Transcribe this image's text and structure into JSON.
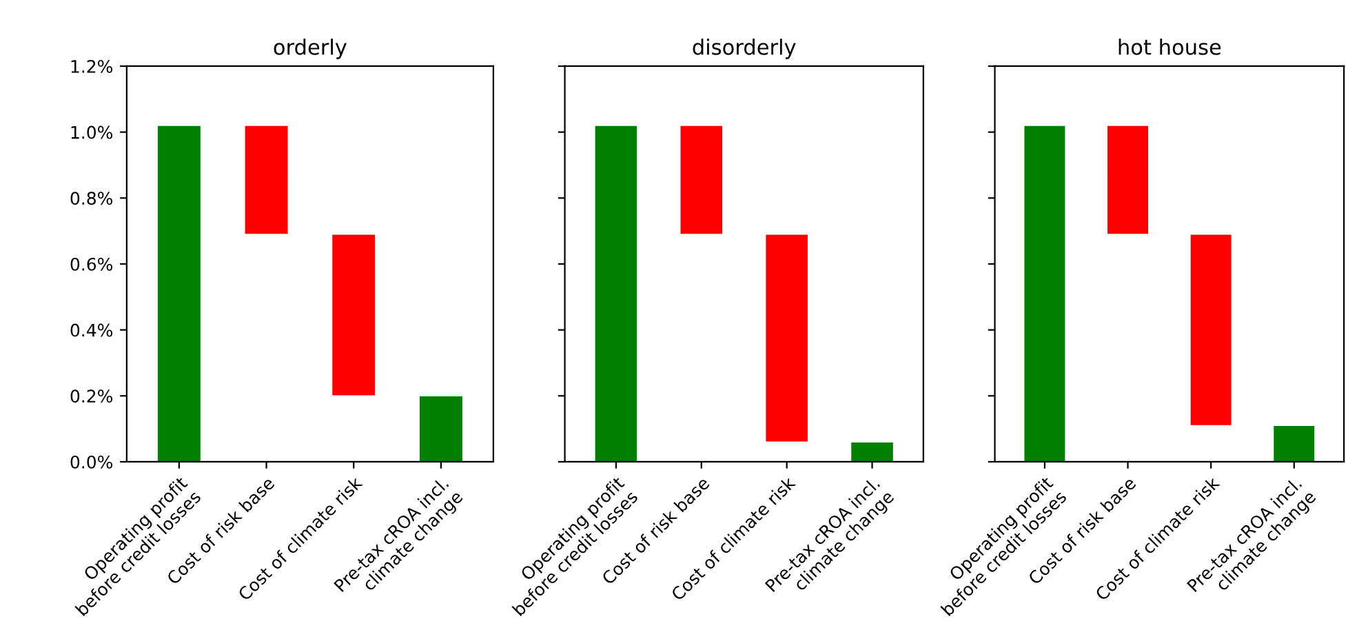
{
  "chart_data": [
    {
      "type": "bar",
      "title": "orderly",
      "categories": [
        "Operating profit\nbefore credit losses",
        "Cost of risk base",
        "Cost of climate risk",
        "Pre-tax cROA incl.\nclimate change"
      ],
      "values": [
        1.02,
        -0.33,
        -0.49,
        0.2
      ],
      "base": [
        0,
        1.02,
        0.69,
        0
      ],
      "colors": [
        "#008000",
        "#ff0000",
        "#ff0000",
        "#008000"
      ],
      "ylim": [
        0,
        1.2
      ],
      "yticks": [
        {
          "value": 0,
          "label": "0.0%"
        },
        {
          "value": 0.2,
          "label": "0.2%"
        },
        {
          "value": 0.4,
          "label": "0.4%"
        },
        {
          "value": 0.6,
          "label": "0.6%"
        },
        {
          "value": 0.8,
          "label": "0.8%"
        },
        {
          "value": 1.0,
          "label": "1.0%"
        },
        {
          "value": 1.2,
          "label": "1.2%"
        }
      ],
      "grid": false
    },
    {
      "type": "bar",
      "title": "disorderly",
      "categories": [
        "Operating profit\nbefore credit losses",
        "Cost of risk base",
        "Cost of climate risk",
        "Pre-tax cROA incl.\nclimate change"
      ],
      "values": [
        1.02,
        -0.33,
        -0.63,
        0.06
      ],
      "base": [
        0,
        1.02,
        0.69,
        0
      ],
      "colors": [
        "#008000",
        "#ff0000",
        "#ff0000",
        "#008000"
      ],
      "ylim": [
        0,
        1.2
      ],
      "yticks": [
        0,
        0.2,
        0.4,
        0.6,
        0.8,
        1.0,
        1.2
      ],
      "tick_labels": "x",
      "grid": false
    },
    {
      "type": "bar",
      "title": "hot house",
      "categories": [
        "Operating profit\nbefore credit losses",
        "Cost of risk base",
        "Cost of climate risk",
        "Pre-tax cROA incl.\nclimate change"
      ],
      "values": [
        1.02,
        -0.33,
        -0.58,
        0.11
      ],
      "base": [
        0,
        1.02,
        0.69,
        0
      ],
      "colors": [
        "#008000",
        "#ff0000",
        "#ff0000",
        "#008000"
      ],
      "ylim": [
        0,
        1.2
      ],
      "yticks": [
        0,
        0.2,
        0.4,
        0.6,
        0.8,
        1.0,
        1.2
      ],
      "tick_labels": "x",
      "grid": false
    }
  ]
}
